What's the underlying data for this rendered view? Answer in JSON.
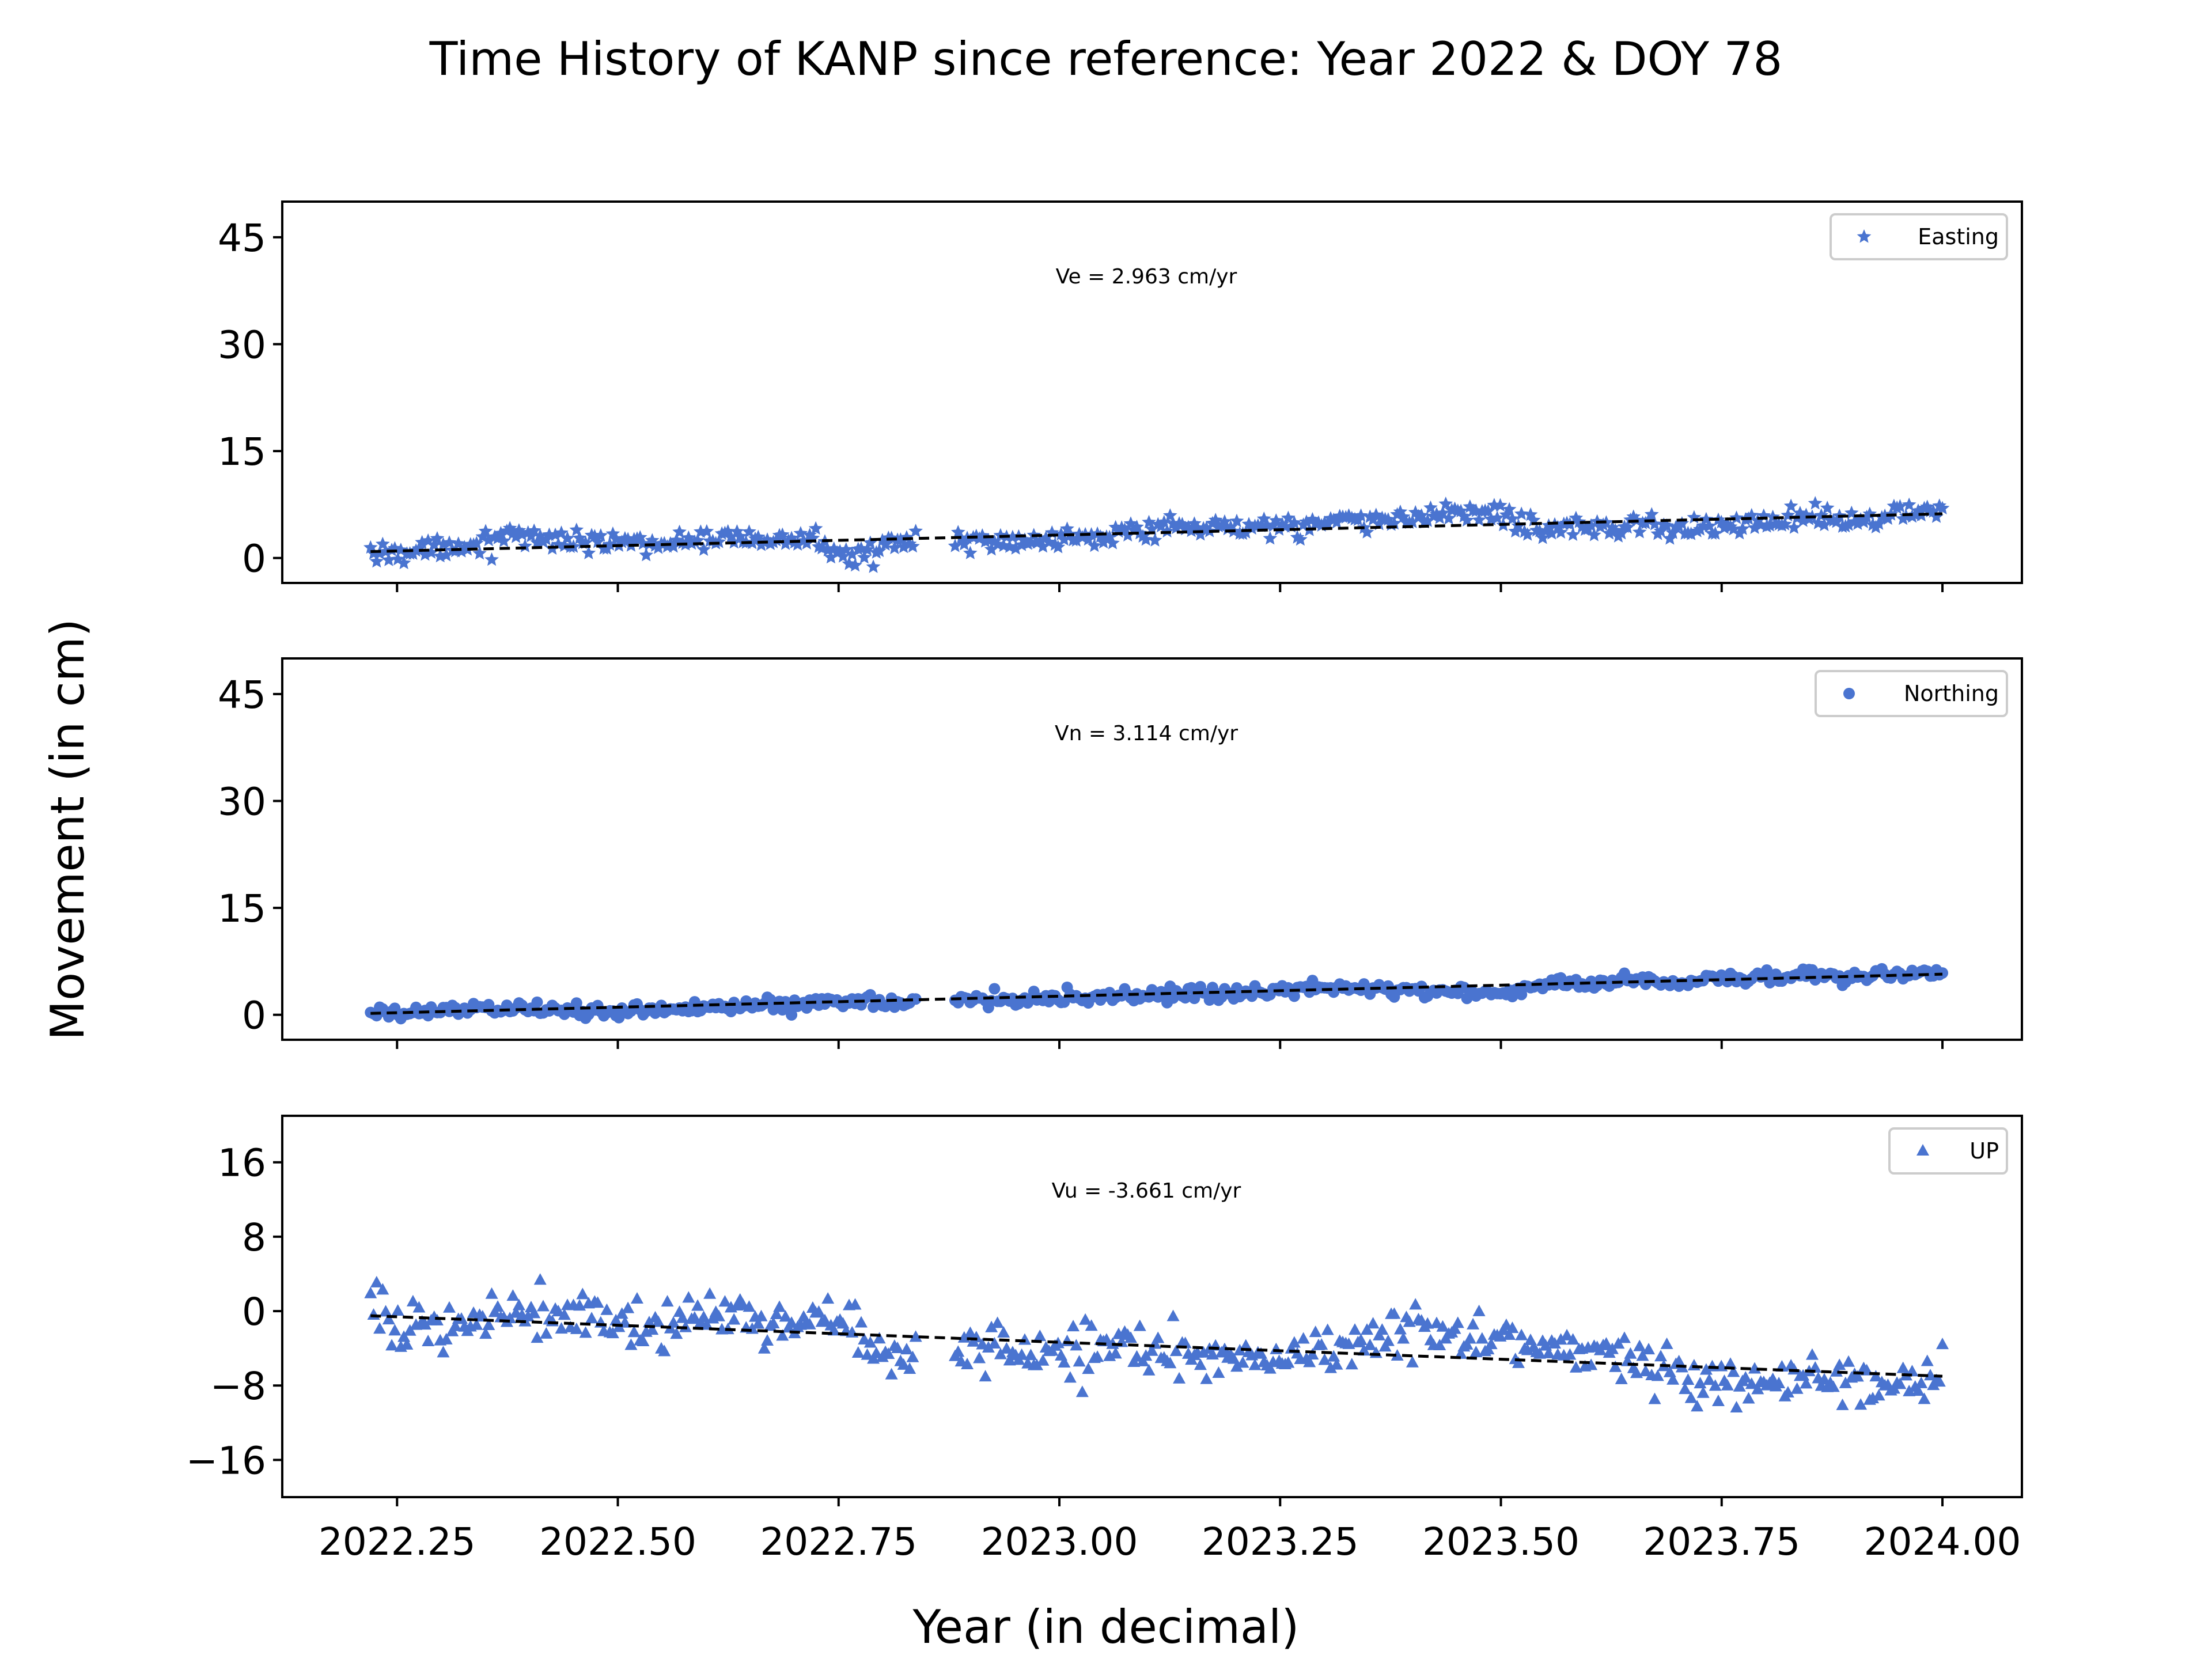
{
  "title": "Time History of KANP since reference: Year 2022 & DOY 78",
  "xlabel": "Year (in decimal)",
  "ylabel": "Movement (in cm)",
  "x_tick_labels": [
    "2022.25",
    "2022.50",
    "2022.75",
    "2023.00",
    "2023.25",
    "2023.50",
    "2023.75",
    "2024.00"
  ],
  "colors": {
    "markers": "#4a74d0",
    "fit_line": "#000000",
    "axes": "#000000",
    "legend_border": "#cccccc"
  },
  "chart_data": [
    {
      "type": "scatter",
      "component": "Easting",
      "legend": "Easting",
      "legend_position": "top-right",
      "marker": "star",
      "velocity_text": "Ve =  2.963 cm/yr",
      "xlim": [
        2022.12,
        2024.09
      ],
      "ylim": [
        -3.5,
        50
      ],
      "xticks": [
        2022.25,
        2022.5,
        2022.75,
        2023.0,
        2023.25,
        2023.5,
        2023.75,
        2024.0
      ],
      "yticks": [
        0,
        15,
        30,
        45
      ],
      "ytick_labels": [
        "0",
        "15",
        "30",
        "45"
      ],
      "trend": {
        "x": [
          2022.22,
          2024.0
        ],
        "y": [
          0.9,
          6.2
        ]
      },
      "data_anchors": {
        "x": [
          2022.22,
          2022.3,
          2022.37,
          2022.45,
          2022.55,
          2022.65,
          2022.72,
          2022.76,
          2022.8,
          2022.83,
          2022.89,
          2022.95,
          2023.05,
          2023.15,
          2023.25,
          2023.35,
          2023.45,
          2023.5,
          2023.55,
          2023.62,
          2023.7,
          2023.75,
          2023.85,
          2023.92,
          2023.98,
          2024.0
        ],
        "y": [
          0.5,
          1.5,
          2.8,
          2.5,
          2.0,
          2.8,
          2.5,
          0.5,
          1.5,
          2.0,
          2.2,
          2.5,
          3.5,
          4.0,
          4.5,
          5.0,
          6.5,
          6.0,
          4.0,
          4.8,
          4.0,
          4.5,
          6.0,
          5.5,
          6.8,
          6.5
        ]
      },
      "gaps": [
        [
          2022.84,
          2022.88
        ]
      ]
    },
    {
      "type": "scatter",
      "component": "Northing",
      "legend": "Northing",
      "legend_position": "top-right",
      "marker": "circle",
      "velocity_text": "Vn =  3.114 cm/yr",
      "xlim": [
        2022.12,
        2024.09
      ],
      "ylim": [
        -3.5,
        50
      ],
      "xticks": [
        2022.25,
        2022.5,
        2022.75,
        2023.0,
        2023.25,
        2023.5,
        2023.75,
        2024.0
      ],
      "yticks": [
        0,
        15,
        30,
        45
      ],
      "ytick_labels": [
        "0",
        "15",
        "30",
        "45"
      ],
      "trend": {
        "x": [
          2022.22,
          2024.0
        ],
        "y": [
          0.2,
          5.7
        ]
      },
      "data_anchors": {
        "x": [
          2022.22,
          2022.35,
          2022.5,
          2022.6,
          2022.68,
          2022.75,
          2022.83,
          2022.89,
          2023.0,
          2023.1,
          2023.2,
          2023.3,
          2023.4,
          2023.5,
          2023.55,
          2023.65,
          2023.75,
          2023.85,
          2023.92,
          2023.98,
          2024.0
        ],
        "y": [
          0.0,
          1.0,
          0.5,
          1.0,
          1.5,
          2.0,
          2.0,
          2.0,
          2.5,
          2.8,
          3.0,
          3.8,
          3.5,
          3.0,
          4.0,
          4.5,
          5.0,
          5.5,
          5.5,
          6.0,
          6.0
        ]
      },
      "gaps": [
        [
          2022.84,
          2022.88
        ]
      ]
    },
    {
      "type": "scatter",
      "component": "UP",
      "legend": "UP",
      "legend_position": "top-right",
      "marker": "triangle",
      "velocity_text": "Vu = -3.661 cm/yr",
      "xlim": [
        2022.12,
        2024.09
      ],
      "ylim": [
        -20,
        21
      ],
      "xticks": [
        2022.25,
        2022.5,
        2022.75,
        2023.0,
        2023.25,
        2023.5,
        2023.75,
        2024.0
      ],
      "yticks": [
        -16,
        -8,
        0,
        8,
        16
      ],
      "ytick_labels": [
        "−16",
        "−8",
        "0",
        "8",
        "16"
      ],
      "trend": {
        "x": [
          2022.22,
          2024.0
        ],
        "y": [
          -0.5,
          -7.0
        ]
      },
      "data_anchors": {
        "x": [
          2022.22,
          2022.3,
          2022.4,
          2022.5,
          2022.55,
          2022.62,
          2022.7,
          2022.76,
          2022.8,
          2022.83,
          2022.89,
          2022.95,
          2023.05,
          2023.15,
          2023.25,
          2023.35,
          2023.45,
          2023.5,
          2023.6,
          2023.7,
          2023.75,
          2023.85,
          2023.92,
          2024.0
        ],
        "y": [
          -1.0,
          -1.5,
          0.5,
          -0.5,
          -2.0,
          -0.5,
          -1.5,
          -1.5,
          -5.0,
          -5.0,
          -4.0,
          -4.5,
          -4.0,
          -5.0,
          -5.0,
          -3.0,
          -2.0,
          -4.0,
          -4.0,
          -7.0,
          -8.0,
          -7.0,
          -8.0,
          -7.0
        ]
      },
      "gaps": [
        [
          2022.84,
          2022.88
        ]
      ]
    }
  ]
}
